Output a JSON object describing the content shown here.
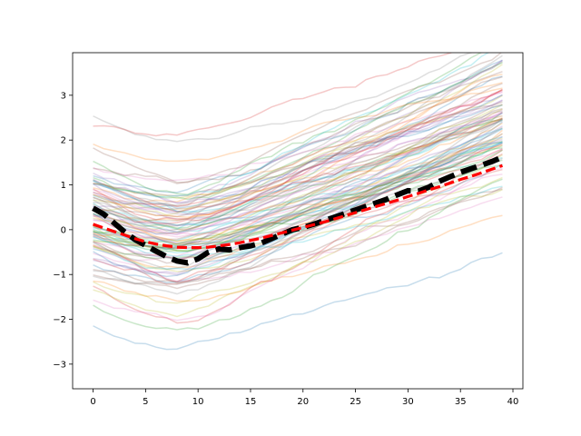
{
  "chart_data": {
    "type": "line",
    "title": "",
    "xlabel": "",
    "ylabel": "",
    "xlim": [
      -1.95,
      40.95
    ],
    "ylim": [
      -3.55,
      3.95
    ],
    "x_ticks": [
      0,
      5,
      10,
      15,
      20,
      25,
      30,
      35,
      40
    ],
    "y_ticks": [
      -3,
      -2,
      -1,
      0,
      1,
      2,
      3
    ],
    "x_tick_labels": [
      "0",
      "5",
      "10",
      "15",
      "20",
      "25",
      "30",
      "35",
      "40"
    ],
    "y_tick_labels": [
      "−3",
      "−2",
      "−1",
      "0",
      "1",
      "2",
      "3"
    ],
    "grid": false,
    "legend": "none",
    "x": [
      0,
      1,
      2,
      3,
      4,
      5,
      6,
      7,
      8,
      9,
      10,
      11,
      12,
      13,
      14,
      15,
      16,
      17,
      18,
      19,
      20,
      21,
      22,
      23,
      24,
      25,
      26,
      27,
      28,
      29,
      30,
      31,
      32,
      33,
      34,
      35,
      36,
      37,
      38,
      39
    ],
    "trajectory_count": 100,
    "trajectory_opacity": 0.25,
    "trajectory_colors": [
      "#1f77b4",
      "#ff7f0e",
      "#2ca02c",
      "#d62728",
      "#9467bd",
      "#8c564b",
      "#e377c2",
      "#7f7f7f",
      "#bcbd22",
      "#17becf"
    ],
    "series": [
      {
        "color": "#000000",
        "style": "dashed",
        "values": [
          0.48,
          0.35,
          0.15,
          -0.05,
          -0.22,
          -0.35,
          -0.48,
          -0.6,
          -0.7,
          -0.74,
          -0.65,
          -0.5,
          -0.43,
          -0.45,
          -0.4,
          -0.36,
          -0.3,
          -0.2,
          -0.1,
          0.0,
          0.05,
          0.12,
          0.2,
          0.28,
          0.36,
          0.44,
          0.52,
          0.6,
          0.68,
          0.78,
          0.87,
          0.86,
          0.95,
          1.08,
          1.18,
          1.28,
          1.36,
          1.44,
          1.52,
          1.62
        ]
      },
      {
        "color": "#ff0000",
        "style": "dashed",
        "values": [
          0.12,
          0.04,
          -0.04,
          -0.12,
          -0.2,
          -0.27,
          -0.32,
          -0.36,
          -0.39,
          -0.4,
          -0.4,
          -0.39,
          -0.36,
          -0.33,
          -0.29,
          -0.24,
          -0.19,
          -0.13,
          -0.07,
          -0.01,
          0.05,
          0.11,
          0.17,
          0.24,
          0.31,
          0.38,
          0.45,
          0.52,
          0.59,
          0.66,
          0.74,
          0.81,
          0.89,
          0.96,
          1.04,
          1.12,
          1.19,
          1.27,
          1.35,
          1.43
        ]
      }
    ]
  }
}
